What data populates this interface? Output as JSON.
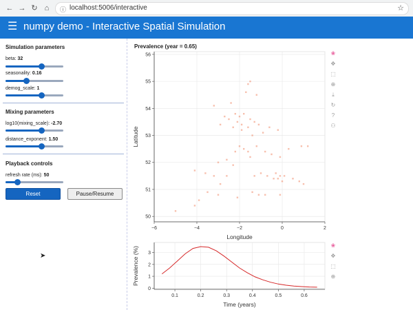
{
  "browser": {
    "url": "localhost:5006/interactive"
  },
  "header": {
    "title": "numpy demo - Interactive Spatial Simulation"
  },
  "sidebar": {
    "sim_title": "Simulation parameters",
    "params": [
      {
        "label": "beta:",
        "value": "32",
        "fraction": 0.62
      },
      {
        "label": "seasonality:",
        "value": "0.16",
        "fraction": 0.36
      },
      {
        "label": "demog_scale:",
        "value": "1",
        "fraction": 0.62
      }
    ],
    "mixing_title": "Mixing parameters",
    "mixing": [
      {
        "label": "log10(mixing_scale):",
        "value": "-2.70",
        "fraction": 0.62
      },
      {
        "label": "distance_exponent:",
        "value": "1.50",
        "fraction": 0.62
      }
    ],
    "playback_title": "Playback controls",
    "playback": [
      {
        "label": "refresh rate (ms):",
        "value": "50",
        "fraction": 0.2
      }
    ],
    "reset_label": "Reset",
    "pause_label": "Pause/Resume"
  },
  "main_plot": {
    "title": "Prevalence (year = 0.65)"
  },
  "chart_data": [
    {
      "type": "scatter",
      "title": "Prevalence (year = 0.65)",
      "xlabel": "Longitude",
      "ylabel": "Latitude",
      "xlim": [
        -6,
        2
      ],
      "ylim": [
        49.8,
        56.1
      ],
      "xticks": [
        -6,
        -4,
        -2,
        0,
        2
      ],
      "yticks": [
        50,
        51,
        52,
        53,
        54,
        55,
        56
      ],
      "grid": true,
      "color": "#f08a6a",
      "points": [
        [
          -1.5,
          55.0
        ],
        [
          -1.6,
          54.9
        ],
        [
          -1.7,
          54.6
        ],
        [
          -1.2,
          54.5
        ],
        [
          -2.4,
          54.2
        ],
        [
          -3.2,
          54.1
        ],
        [
          -2.2,
          53.8
        ],
        [
          -2.0,
          53.7
        ],
        [
          -1.8,
          53.8
        ],
        [
          -2.5,
          53.6
        ],
        [
          -2.7,
          53.7
        ],
        [
          -1.5,
          53.6
        ],
        [
          -1.3,
          53.5
        ],
        [
          -2.9,
          53.4
        ],
        [
          -1.9,
          53.4
        ],
        [
          -2.1,
          53.5
        ],
        [
          -1.1,
          53.4
        ],
        [
          -1.6,
          53.3
        ],
        [
          -1.9,
          53.2
        ],
        [
          -2.3,
          53.3
        ],
        [
          -0.6,
          53.3
        ],
        [
          -0.9,
          53.1
        ],
        [
          -1.4,
          53.0
        ],
        [
          -0.2,
          53.2
        ],
        [
          -2.0,
          52.6
        ],
        [
          -1.8,
          52.5
        ],
        [
          -1.6,
          52.4
        ],
        [
          -2.2,
          52.4
        ],
        [
          -1.2,
          52.6
        ],
        [
          -0.8,
          52.4
        ],
        [
          -1.5,
          52.2
        ],
        [
          -0.5,
          52.3
        ],
        [
          -0.1,
          52.2
        ],
        [
          0.3,
          52.5
        ],
        [
          0.9,
          52.6
        ],
        [
          1.2,
          52.6
        ],
        [
          -0.3,
          51.6
        ],
        [
          -0.1,
          51.5
        ],
        [
          0.1,
          51.5
        ],
        [
          -0.2,
          51.4
        ],
        [
          0.0,
          51.3
        ],
        [
          -0.4,
          51.4
        ],
        [
          0.5,
          51.4
        ],
        [
          0.8,
          51.3
        ],
        [
          1.0,
          51.2
        ],
        [
          -0.7,
          51.5
        ],
        [
          -1.0,
          51.6
        ],
        [
          -1.3,
          51.5
        ],
        [
          -2.6,
          51.5
        ],
        [
          -3.2,
          51.5
        ],
        [
          -3.6,
          51.6
        ],
        [
          -4.1,
          51.7
        ],
        [
          -2.9,
          51.2
        ],
        [
          -3.5,
          50.9
        ],
        [
          -4.1,
          50.4
        ],
        [
          -3.9,
          50.6
        ],
        [
          -1.4,
          50.9
        ],
        [
          -1.1,
          50.8
        ],
        [
          -0.8,
          50.8
        ],
        [
          -0.1,
          50.8
        ],
        [
          -2.1,
          50.7
        ],
        [
          -3.0,
          50.8
        ],
        [
          -5.0,
          50.2
        ],
        [
          -2.6,
          52.1
        ],
        [
          -3.0,
          52.0
        ],
        [
          -2.3,
          51.9
        ]
      ]
    },
    {
      "type": "line",
      "xlabel": "Time (years)",
      "ylabel": "Prevalence (%)",
      "xlim": [
        0.02,
        0.68
      ],
      "ylim": [
        -0.1,
        3.85
      ],
      "xticks": [
        0.1,
        0.2,
        0.3,
        0.4,
        0.5,
        0.6
      ],
      "yticks": [
        0,
        1,
        2,
        3
      ],
      "grid": true,
      "color": "#d62728",
      "x": [
        0.05,
        0.08,
        0.11,
        0.14,
        0.17,
        0.2,
        0.23,
        0.26,
        0.29,
        0.32,
        0.35,
        0.38,
        0.41,
        0.44,
        0.47,
        0.5,
        0.53,
        0.56,
        0.59,
        0.62,
        0.65
      ],
      "y": [
        1.2,
        1.7,
        2.3,
        2.9,
        3.35,
        3.5,
        3.45,
        3.15,
        2.7,
        2.2,
        1.7,
        1.3,
        0.95,
        0.7,
        0.5,
        0.35,
        0.25,
        0.18,
        0.13,
        0.1,
        0.08
      ]
    }
  ],
  "icons": {
    "tools_main": [
      "bokeh-logo-icon",
      "pan-icon",
      "box-zoom-icon",
      "wheel-zoom-icon",
      "save-icon",
      "reset-icon",
      "help-icon",
      "hover-icon"
    ],
    "tools_line": [
      "bokeh-logo-icon",
      "pan-icon",
      "box-zoom-icon",
      "wheel-zoom-icon"
    ]
  }
}
